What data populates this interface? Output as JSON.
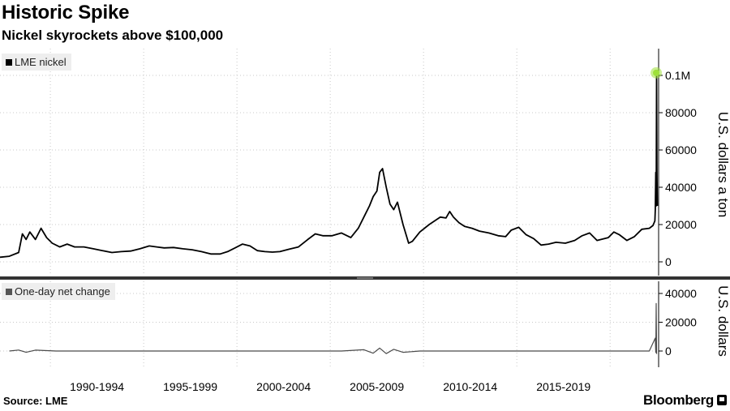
{
  "title": "Historic Spike",
  "subtitle": "Nickel skyrockets above $100,000",
  "source": "Source: LME",
  "brand": "Bloomberg",
  "colors": {
    "price_line": "#000000",
    "change_line": "#4a4a4a",
    "spike_marker": "#9ee03a",
    "grid": "#c8c8c8"
  },
  "chart_data": [
    {
      "type": "line",
      "series_name": "LME nickel",
      "ylabel": "U.S. dollars a ton",
      "ylim": [
        -3000,
        113000
      ],
      "yticks": [
        0,
        20000,
        40000,
        60000,
        80000,
        100000
      ],
      "ytick_labels": [
        "0",
        "20000",
        "40000",
        "60000",
        "80000",
        "0.1M"
      ],
      "x_range": [
        1987.0,
        2022.3
      ],
      "x_categories": [
        "1990-1994",
        "1995-1999",
        "2000-2004",
        "2005-2009",
        "2010-2014",
        "2015-2019"
      ],
      "series": [
        {
          "name": "LME nickel",
          "x": [
            1987.0,
            1987.5,
            1988.0,
            1988.2,
            1988.4,
            1988.6,
            1988.9,
            1989.2,
            1989.5,
            1989.8,
            1990.2,
            1990.6,
            1991.0,
            1991.5,
            1992.0,
            1992.5,
            1993.0,
            1993.5,
            1994.0,
            1994.5,
            1995.0,
            1995.4,
            1995.8,
            1996.3,
            1996.8,
            1997.3,
            1997.8,
            1998.3,
            1998.8,
            1999.2,
            1999.6,
            2000.0,
            2000.4,
            2000.8,
            2001.2,
            2001.6,
            2002.0,
            2002.5,
            2003.0,
            2003.5,
            2003.9,
            2004.3,
            2004.8,
            2005.3,
            2005.8,
            2006.2,
            2006.5,
            2006.8,
            2007.0,
            2007.2,
            2007.35,
            2007.5,
            2007.7,
            2007.9,
            2008.1,
            2008.3,
            2008.6,
            2008.9,
            2009.1,
            2009.5,
            2010.0,
            2010.3,
            2010.6,
            2010.9,
            2011.1,
            2011.3,
            2011.6,
            2011.9,
            2012.3,
            2012.7,
            2013.2,
            2013.7,
            2014.1,
            2014.4,
            2014.8,
            2015.2,
            2015.6,
            2016.0,
            2016.4,
            2016.8,
            2017.3,
            2017.8,
            2018.2,
            2018.6,
            2019.0,
            2019.6,
            2019.9,
            2020.2,
            2020.6,
            2021.0,
            2021.4,
            2021.8,
            2022.0,
            2022.1,
            2022.12,
            2022.15,
            2022.17,
            2022.19,
            2022.21,
            2022.23
          ],
          "values": [
            2500,
            3000,
            5000,
            15000,
            12000,
            16000,
            12000,
            18000,
            13000,
            10000,
            8000,
            9500,
            8000,
            8000,
            7000,
            6000,
            5000,
            5500,
            5800,
            7000,
            8500,
            8000,
            7500,
            7700,
            7000,
            6500,
            5500,
            4200,
            4200,
            5500,
            7500,
            9500,
            8500,
            6000,
            5500,
            5200,
            5500,
            6800,
            8000,
            12000,
            15000,
            14000,
            14000,
            15500,
            13000,
            18000,
            24000,
            30000,
            35000,
            38000,
            48000,
            50000,
            40000,
            31000,
            28000,
            32000,
            20000,
            10000,
            11000,
            16000,
            20000,
            22000,
            24000,
            23500,
            27000,
            24000,
            21000,
            19000,
            18000,
            16500,
            15500,
            14000,
            13500,
            17000,
            18500,
            14500,
            12500,
            9000,
            9500,
            10500,
            10000,
            11500,
            14000,
            15500,
            11500,
            13000,
            16000,
            14500,
            11500,
            13500,
            17500,
            18000,
            19500,
            22000,
            28000,
            48000,
            30000,
            100000,
            50000,
            30000
          ]
        }
      ],
      "spike_marker": {
        "x": 2022.17,
        "y": 101365
      }
    },
    {
      "type": "line",
      "series_name": "One-day net change",
      "ylabel": "U.S. dollars",
      "ylim": [
        -5000,
        45000
      ],
      "yticks": [
        0,
        20000,
        40000
      ],
      "ytick_labels": [
        "0",
        "20000",
        "40000"
      ],
      "series": [
        {
          "name": "One-day net change",
          "x": [
            1987.5,
            1988.0,
            1988.4,
            1988.9,
            1990.0,
            1995.0,
            2000.0,
            2003.9,
            2005.3,
            2006.5,
            2007.0,
            2007.35,
            2007.7,
            2008.1,
            2008.6,
            2009.5,
            2011.0,
            2013.0,
            2015.0,
            2017.0,
            2019.0,
            2020.5,
            2021.8,
            2022.12,
            2022.15,
            2022.17,
            2022.19
          ],
          "values": [
            0,
            700,
            -900,
            600,
            0,
            0,
            0,
            0,
            0,
            900,
            -1500,
            2000,
            -1800,
            1200,
            -900,
            0,
            0,
            0,
            0,
            0,
            0,
            0,
            0,
            9000,
            -1000,
            33000,
            -2000
          ]
        }
      ]
    }
  ]
}
